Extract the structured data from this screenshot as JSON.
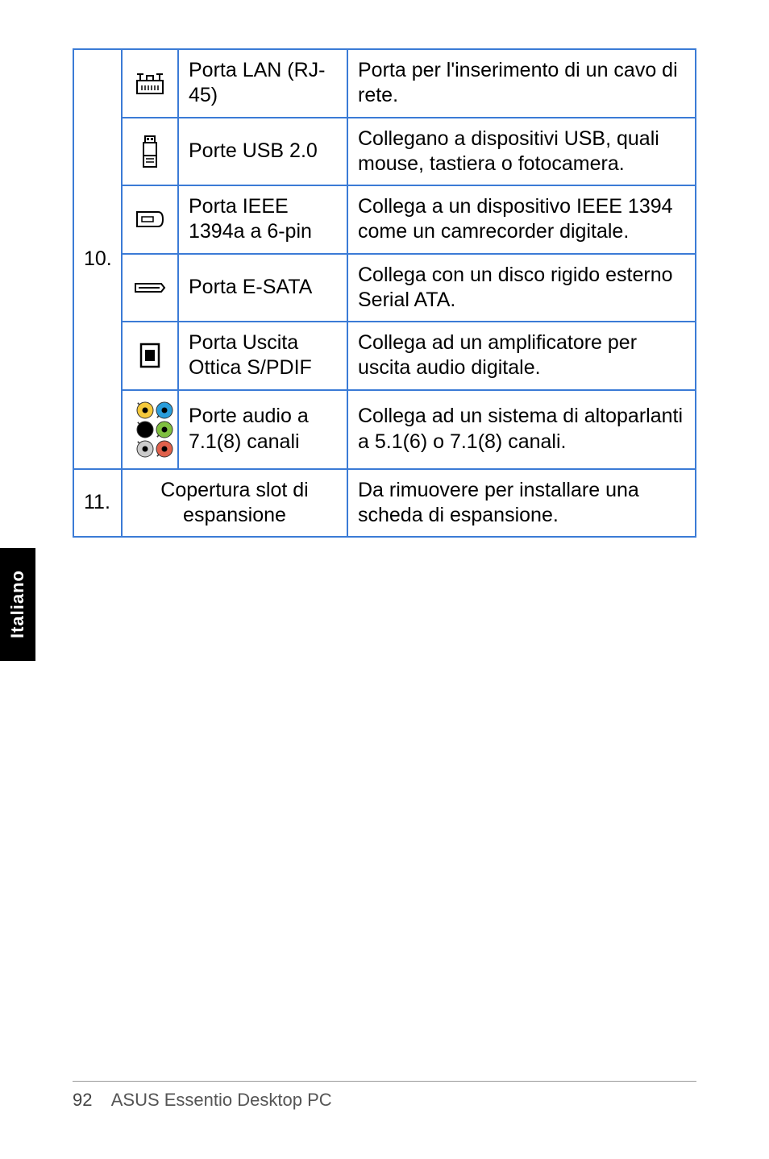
{
  "table": {
    "border_color": "#3b7bd6",
    "rows": [
      {
        "num": "10.",
        "name": "Porta LAN (RJ-45)",
        "desc": "Porta per l'inserimento di un cavo di rete."
      },
      {
        "name": "Porte USB 2.0",
        "desc": "Collegano a dispositivi USB, quali mouse, tastiera o fotocamera."
      },
      {
        "name": "Porta IEEE 1394a a 6-pin",
        "desc": "Collega a un dispositivo IEEE 1394 come un camrecorder digitale."
      },
      {
        "name": "Porta E-SATA",
        "desc": "Collega con un disco rigido esterno Serial ATA."
      },
      {
        "name": "Porta Uscita Ottica S/PDIF",
        "desc": "Collega ad un amplificatore per uscita audio digitale."
      },
      {
        "name": "Porte audio a 7.1(8) canali",
        "desc": "Collega ad un sistema di altoparlanti a 5.1(6) o 7.1(8) canali."
      },
      {
        "num": "11.",
        "merged_name": "Copertura slot di espansione",
        "desc": "Da rimuovere per installare una scheda di espansione."
      }
    ]
  },
  "side_tab": {
    "label": "Italiano",
    "bg": "#000000",
    "fg": "#ffffff"
  },
  "footer": {
    "page": "92",
    "title": "ASUS Essentio Desktop PC"
  },
  "icons": {
    "lan": "lan-icon",
    "usb": "usb-icon",
    "ieee1394": "ieee1394-icon",
    "esata": "esata-icon",
    "spdif": "spdif-icon",
    "audio6": "audio-jacks-icon"
  },
  "audio_jack_colors": [
    "#f5c93c",
    "#2a9ddb",
    "#000000",
    "#7fbf3f",
    "#cccccc",
    "#e0604b"
  ]
}
